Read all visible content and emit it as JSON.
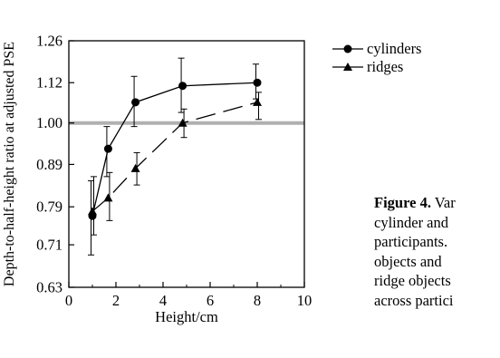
{
  "chart_data": {
    "type": "line",
    "xlabel": "Height/cm",
    "ylabel": "Depth-to-half-height ratio at adjusted PSE",
    "xlim": [
      0,
      10
    ],
    "ylim": [
      0.63,
      1.26
    ],
    "x_ticks": [
      "0",
      "2",
      "4",
      "6",
      "8",
      "10"
    ],
    "y_ticks": [
      "0.63",
      "0.71",
      "0.79",
      "0.89",
      "1.00",
      "1.12",
      "1.26"
    ],
    "reference_line": {
      "y": 1.0,
      "color": "#b0b0b0"
    },
    "legend_position": "top-right (outside plot)",
    "series": [
      {
        "name": "cylinders",
        "marker": "circle",
        "line_style": "solid",
        "x": [
          1,
          1.67,
          2.83,
          4.83,
          8
        ],
        "y": [
          0.77,
          0.93,
          1.06,
          1.11,
          1.12
        ],
        "err_low": [
          0.69,
          0.86,
          0.99,
          1.03,
          1.07
        ],
        "err_high": [
          0.85,
          0.99,
          1.14,
          1.2,
          1.18
        ]
      },
      {
        "name": "ridges",
        "marker": "triangle",
        "line_style": "dashed",
        "x": [
          1,
          1.67,
          2.83,
          4.83,
          8
        ],
        "y": [
          0.78,
          0.81,
          0.88,
          1.0,
          1.06
        ],
        "err_low": [
          0.73,
          0.76,
          0.84,
          0.96,
          1.01
        ],
        "err_high": [
          0.86,
          0.87,
          0.92,
          1.04,
          1.09
        ]
      }
    ]
  },
  "caption": {
    "label": "Figure 4.",
    "lines": [
      "Figure 4. Var",
      "cylinder and",
      "participants.",
      "objects and",
      "ridge objects",
      "across partici"
    ]
  }
}
